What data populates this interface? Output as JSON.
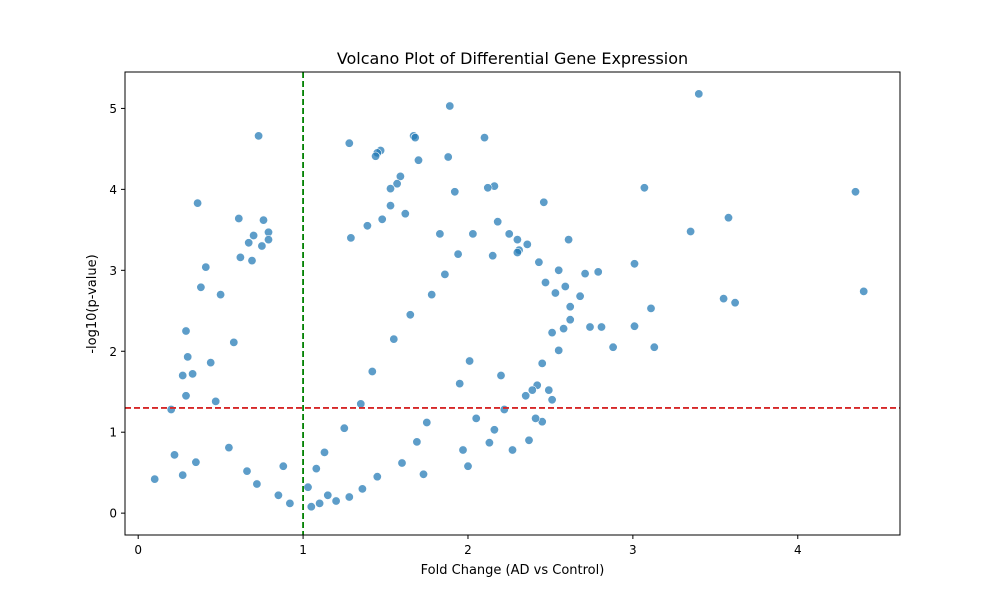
{
  "chart_data": {
    "type": "scatter",
    "title": "Volcano Plot of Differential Gene Expression",
    "xlabel": "Fold Change (AD vs Control)",
    "ylabel": "-log10(p-value)",
    "xlim": [
      -0.08,
      4.62
    ],
    "ylim": [
      -0.27,
      5.45
    ],
    "xticks": [
      0,
      1,
      2,
      3,
      4
    ],
    "yticks": [
      0,
      1,
      2,
      3,
      4,
      5
    ],
    "grid": false,
    "legend": "none",
    "point_color": "#1f77b4",
    "reference_lines": [
      {
        "orientation": "vertical",
        "value": 1,
        "color": "#008000",
        "style": "dashed"
      },
      {
        "orientation": "horizontal",
        "value": 1.3,
        "color": "#d62728",
        "style": "dashed"
      }
    ],
    "series": [
      {
        "name": "",
        "x": [
          0.73,
          0.36,
          0.61,
          0.76,
          0.79,
          0.7,
          0.79,
          0.67,
          0.75,
          0.62,
          0.69,
          0.41,
          0.38,
          0.29,
          0.3,
          0.33,
          0.29,
          0.27,
          0.2,
          0.22,
          0.1,
          0.27,
          0.55,
          0.66,
          0.72,
          0.85,
          0.92,
          0.35,
          0.47,
          0.58,
          0.88,
          0.5,
          0.44,
          1.89,
          3.4,
          1.67,
          1.68,
          1.28,
          2.1,
          1.47,
          1.45,
          1.44,
          1.7,
          1.88,
          1.59,
          1.57,
          1.53,
          1.92,
          2.16,
          2.12,
          3.07,
          4.35,
          2.46,
          1.53,
          1.62,
          1.48,
          1.39,
          1.29,
          1.83,
          3.58,
          3.35,
          2.61,
          2.25,
          2.3,
          2.36,
          2.31,
          2.43,
          2.15,
          2.55,
          2.71,
          3.01,
          2.79,
          2.59,
          2.68,
          2.53,
          3.11,
          3.55,
          3.62,
          4.4,
          3.01,
          2.88,
          3.13,
          2.74,
          2.51,
          2.58,
          2.62,
          2.55,
          2.42,
          2.39,
          2.49,
          2.51,
          2.45,
          2.22,
          2.05,
          2.16,
          2.27,
          2.0,
          1.97,
          2.13,
          2.37,
          2.41,
          2.2,
          2.01,
          1.95,
          1.75,
          1.73,
          1.69,
          1.6,
          1.45,
          1.36,
          1.28,
          1.2,
          1.15,
          1.1,
          1.05,
          1.03,
          1.08,
          1.13,
          1.25,
          1.35,
          1.42,
          1.55,
          1.65,
          1.78,
          1.86,
          1.94,
          2.03,
          2.18,
          2.3,
          2.47,
          2.62,
          2.81,
          2.45,
          2.35
        ],
        "y": [
          4.66,
          3.83,
          3.64,
          3.62,
          3.47,
          3.43,
          3.38,
          3.34,
          3.3,
          3.16,
          3.12,
          3.04,
          2.79,
          2.25,
          1.93,
          1.72,
          1.45,
          1.7,
          1.28,
          0.72,
          0.42,
          0.47,
          0.81,
          0.52,
          0.36,
          0.22,
          0.12,
          0.63,
          1.38,
          2.11,
          0.58,
          2.7,
          1.86,
          5.03,
          5.18,
          4.66,
          4.64,
          4.57,
          4.64,
          4.48,
          4.45,
          4.41,
          4.36,
          4.4,
          4.16,
          4.07,
          4.01,
          3.97,
          4.04,
          4.02,
          4.02,
          3.97,
          3.84,
          3.8,
          3.7,
          3.63,
          3.55,
          3.4,
          3.45,
          3.65,
          3.48,
          3.38,
          3.45,
          3.38,
          3.32,
          3.25,
          3.1,
          3.18,
          3.0,
          2.96,
          3.08,
          2.98,
          2.8,
          2.68,
          2.72,
          2.53,
          2.65,
          2.6,
          2.74,
          2.31,
          2.05,
          2.05,
          2.3,
          2.23,
          2.28,
          2.39,
          2.01,
          1.58,
          1.52,
          1.52,
          1.4,
          1.13,
          1.28,
          1.17,
          1.03,
          0.78,
          0.58,
          0.78,
          0.87,
          0.9,
          1.17,
          1.7,
          1.88,
          1.6,
          1.12,
          0.48,
          0.88,
          0.62,
          0.45,
          0.3,
          0.2,
          0.15,
          0.22,
          0.12,
          0.08,
          0.32,
          0.55,
          0.75,
          1.05,
          1.35,
          1.75,
          2.15,
          2.45,
          2.7,
          2.95,
          3.2,
          3.45,
          3.6,
          3.22,
          2.85,
          2.55,
          2.3,
          1.85,
          1.45
        ]
      }
    ]
  }
}
